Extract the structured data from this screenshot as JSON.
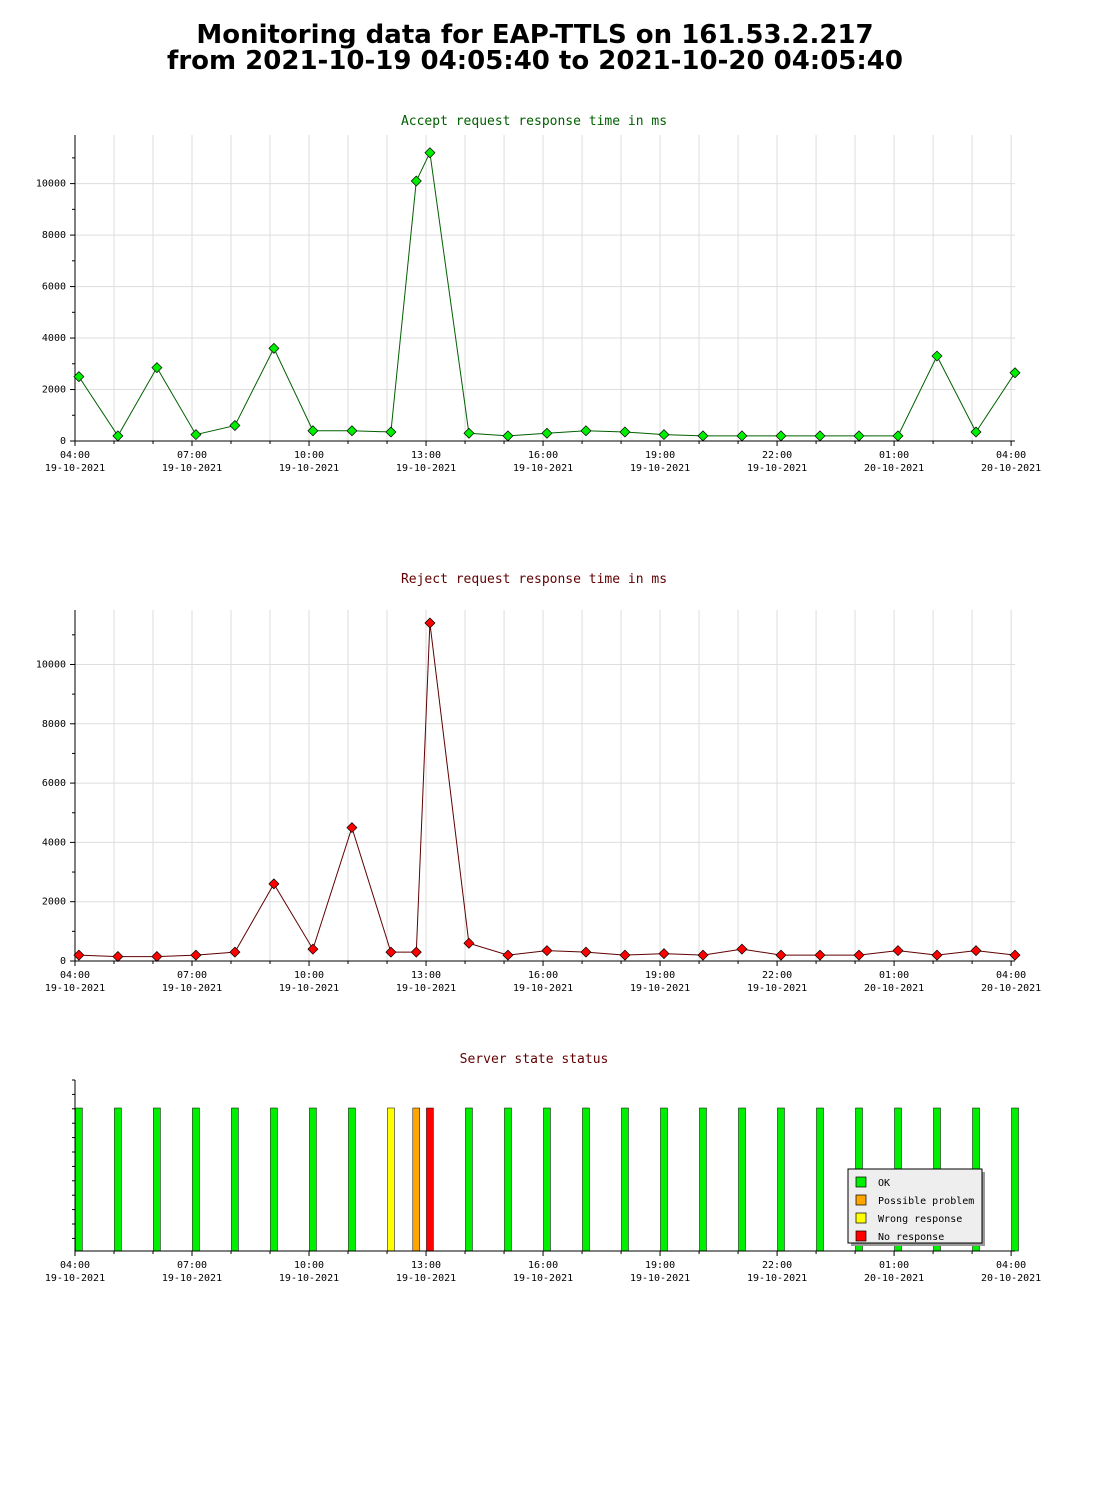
{
  "page": {
    "title_line1": "Monitoring data for EAP-TTLS on 161.53.2.217",
    "title_line2": "from 2021-10-19 04:05:40 to 2021-10-20 04:05:40"
  },
  "colors": {
    "ok": "#00ee00",
    "possible_problem": "#ffa500",
    "wrong_response": "#ffff00",
    "no_response": "#ff0000",
    "accept_line": "#006000",
    "reject_line": "#600000",
    "grid": "#dddddd"
  },
  "chart_data": [
    {
      "id": "accept",
      "type": "line",
      "title": "Accept request response time in ms",
      "title_color": "#006000",
      "x_ticks": [
        {
          "time": "04:00",
          "date": "19-10-2021"
        },
        {
          "time": "07:00",
          "date": "19-10-2021"
        },
        {
          "time": "10:00",
          "date": "19-10-2021"
        },
        {
          "time": "13:00",
          "date": "19-10-2021"
        },
        {
          "time": "16:00",
          "date": "19-10-2021"
        },
        {
          "time": "19:00",
          "date": "19-10-2021"
        },
        {
          "time": "22:00",
          "date": "19-10-2021"
        },
        {
          "time": "01:00",
          "date": "20-10-2021"
        },
        {
          "time": "04:00",
          "date": "20-10-2021"
        }
      ],
      "ylim": [
        0,
        11500
      ],
      "yticks": [
        0,
        2000,
        4000,
        6000,
        8000,
        10000
      ],
      "grid": true,
      "series": [
        {
          "marker_color": "#00ee00",
          "line_color": "#006000",
          "x": [
            4.1,
            5.1,
            6.1,
            7.1,
            8.1,
            9.1,
            10.1,
            11.1,
            12.1,
            12.75,
            13.1,
            14.1,
            15.1,
            16.1,
            17.1,
            18.1,
            19.1,
            20.1,
            21.1,
            22.1,
            23.1,
            24.1,
            25.1,
            26.1,
            27.1,
            28.1
          ],
          "values": [
            2500,
            200,
            2850,
            250,
            600,
            3600,
            400,
            400,
            350,
            10100,
            11200,
            300,
            200,
            300,
            400,
            350,
            250,
            200,
            200,
            200,
            200,
            200,
            200,
            3300,
            350,
            2650
          ]
        }
      ]
    },
    {
      "id": "reject",
      "type": "line",
      "title": "Reject request response time in ms",
      "title_color": "#600000",
      "x_ticks": [
        {
          "time": "04:00",
          "date": "19-10-2021"
        },
        {
          "time": "07:00",
          "date": "19-10-2021"
        },
        {
          "time": "10:00",
          "date": "19-10-2021"
        },
        {
          "time": "13:00",
          "date": "19-10-2021"
        },
        {
          "time": "16:00",
          "date": "19-10-2021"
        },
        {
          "time": "19:00",
          "date": "19-10-2021"
        },
        {
          "time": "22:00",
          "date": "19-10-2021"
        },
        {
          "time": "01:00",
          "date": "20-10-2021"
        },
        {
          "time": "04:00",
          "date": "20-10-2021"
        }
      ],
      "ylim": [
        0,
        11500
      ],
      "yticks": [
        0,
        2000,
        4000,
        6000,
        8000,
        10000
      ],
      "grid": true,
      "series": [
        {
          "marker_color": "#ff0000",
          "line_color": "#600000",
          "x": [
            4.1,
            5.1,
            6.1,
            7.1,
            8.1,
            9.1,
            10.1,
            11.1,
            12.1,
            12.75,
            13.1,
            14.1,
            15.1,
            16.1,
            17.1,
            18.1,
            19.1,
            20.1,
            21.1,
            22.1,
            23.1,
            24.1,
            25.1,
            26.1,
            27.1,
            28.1
          ],
          "values": [
            200,
            150,
            150,
            200,
            300,
            2600,
            400,
            4500,
            300,
            300,
            11400,
            600,
            200,
            350,
            300,
            200,
            250,
            200,
            400,
            200,
            200,
            200,
            350,
            200,
            350,
            200
          ]
        }
      ]
    },
    {
      "id": "state",
      "type": "bar",
      "title": "Server state status",
      "title_color": "#600000",
      "x_ticks": [
        {
          "time": "04:00",
          "date": "19-10-2021"
        },
        {
          "time": "07:00",
          "date": "19-10-2021"
        },
        {
          "time": "10:00",
          "date": "19-10-2021"
        },
        {
          "time": "13:00",
          "date": "19-10-2021"
        },
        {
          "time": "16:00",
          "date": "19-10-2021"
        },
        {
          "time": "19:00",
          "date": "19-10-2021"
        },
        {
          "time": "22:00",
          "date": "19-10-2021"
        },
        {
          "time": "01:00",
          "date": "20-10-2021"
        },
        {
          "time": "04:00",
          "date": "20-10-2021"
        }
      ],
      "legend": {
        "placement": "bottom-right",
        "entries": [
          {
            "key": "ok",
            "label": "OK"
          },
          {
            "key": "possible_problem",
            "label": "Possible problem"
          },
          {
            "key": "wrong_response",
            "label": "Wrong response"
          },
          {
            "key": "no_response",
            "label": "No response"
          }
        ]
      },
      "x": [
        4.1,
        5.1,
        6.1,
        7.1,
        8.1,
        9.1,
        10.1,
        11.1,
        12.1,
        12.75,
        13.1,
        14.1,
        15.1,
        16.1,
        17.1,
        18.1,
        19.1,
        20.1,
        21.1,
        22.1,
        23.1,
        24.1,
        25.1,
        26.1,
        27.1,
        28.1
      ],
      "states": [
        "ok",
        "ok",
        "ok",
        "ok",
        "ok",
        "ok",
        "ok",
        "ok",
        "wrong_response",
        "possible_problem",
        "no_response",
        "ok",
        "ok",
        "ok",
        "ok",
        "ok",
        "ok",
        "ok",
        "ok",
        "ok",
        "ok",
        "ok",
        "ok",
        "ok",
        "ok",
        "ok"
      ]
    }
  ]
}
